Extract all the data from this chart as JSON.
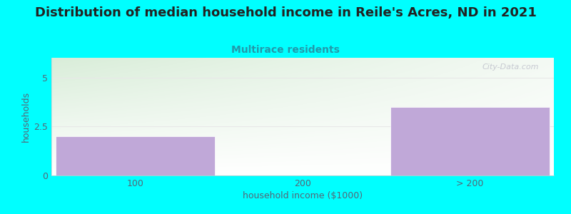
{
  "title": "Distribution of median household income in Reile's Acres, ND in 2021",
  "subtitle": "Multirace residents",
  "xlabel": "household income ($1000)",
  "ylabel": "households",
  "background_color": "#00FFFF",
  "plot_bg_top_left": "#ddeedd",
  "plot_bg_top_right": "#f5f5f5",
  "plot_bg_bottom": "#ffffff",
  "bar_color": "#c0a8d8",
  "bar_edge_color": "#ffffff",
  "categories": [
    "100",
    "200",
    "> 200"
  ],
  "values": [
    2,
    0,
    3.5
  ],
  "ylim": [
    0,
    6
  ],
  "yticks": [
    0,
    2.5,
    5
  ],
  "title_fontsize": 13,
  "subtitle_fontsize": 10,
  "label_fontsize": 9,
  "tick_fontsize": 9,
  "title_color": "#222222",
  "subtitle_color": "#2299aa",
  "axis_label_color": "#556677",
  "tick_color": "#556677",
  "watermark": "City-Data.com",
  "grid_color": "#e8e8e8"
}
